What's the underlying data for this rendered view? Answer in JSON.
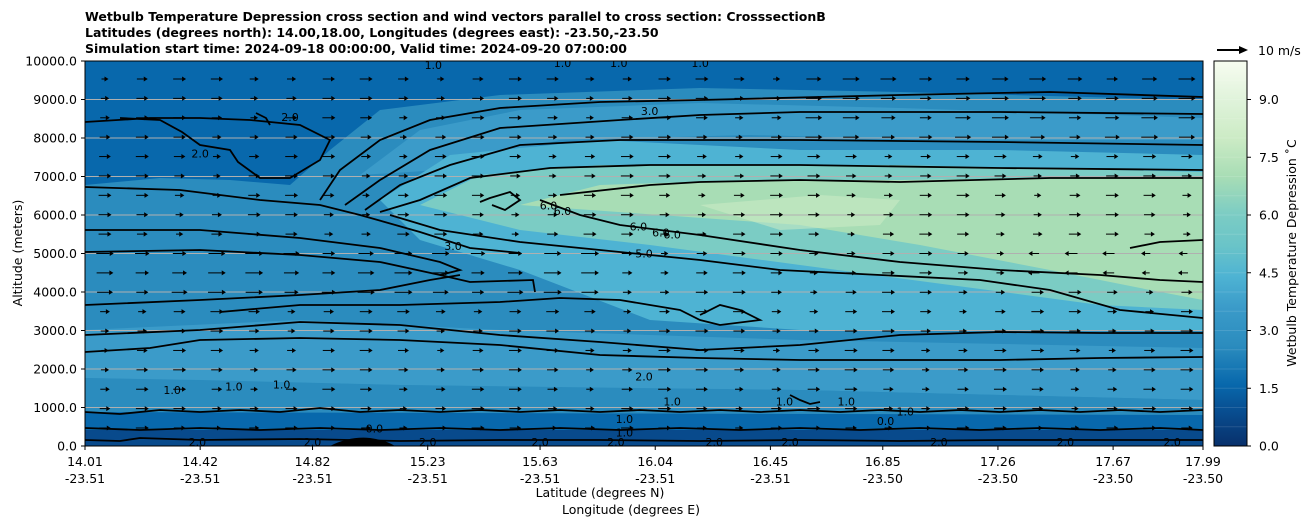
{
  "chart_data": {
    "type": "heatmap",
    "title_lines": [
      "Wetbulb Temperature Depression cross section and wind vectors parallel to cross section: CrosssectionB",
      "Latitudes (degrees north): 14.00,18.00, Longitudes (degrees east): -23.50,-23.50",
      "Simulation start time: 2024-09-18 00:00:00, Valid time: 2024-09-20 07:00:00"
    ],
    "xlabel_lines": [
      "Latitude (degrees N)",
      "Longitude (degrees E)"
    ],
    "ylabel": "Altitude (meters)",
    "colorbar_label": "Wetbulb Temperature Depression ˚C",
    "quiver_key_label": "10 m/s",
    "x_ticks": [
      {
        "lat": "14.01",
        "lon": "-23.51"
      },
      {
        "lat": "14.42",
        "lon": "-23.51"
      },
      {
        "lat": "14.82",
        "lon": "-23.51"
      },
      {
        "lat": "15.23",
        "lon": "-23.51"
      },
      {
        "lat": "15.63",
        "lon": "-23.51"
      },
      {
        "lat": "16.04",
        "lon": "-23.51"
      },
      {
        "lat": "16.45",
        "lon": "-23.51"
      },
      {
        "lat": "16.85",
        "lon": "-23.50"
      },
      {
        "lat": "17.26",
        "lon": "-23.50"
      },
      {
        "lat": "17.67",
        "lon": "-23.50"
      },
      {
        "lat": "17.99",
        "lon": "-23.50"
      }
    ],
    "y_ticks": [
      "0.0",
      "1000.0",
      "2000.0",
      "3000.0",
      "4000.0",
      "5000.0",
      "6000.0",
      "7000.0",
      "8000.0",
      "9000.0",
      "10000.0"
    ],
    "ylim": [
      0,
      10000
    ],
    "xlim": [
      14.01,
      17.99
    ],
    "colorbar_ticks": [
      "0.0",
      "1.5",
      "3.0",
      "4.5",
      "6.0",
      "7.5",
      "9.0"
    ],
    "colorbar_range": [
      0,
      10
    ],
    "contour_labels": [
      {
        "text": "1.0",
        "lat": 15.25,
        "alt": 9900
      },
      {
        "text": "1.0",
        "lat": 15.71,
        "alt": 9950
      },
      {
        "text": "1.0",
        "lat": 15.91,
        "alt": 9950
      },
      {
        "text": "1.0",
        "lat": 16.2,
        "alt": 9950
      },
      {
        "text": "2.0",
        "lat": 14.74,
        "alt": 8550
      },
      {
        "text": "2.0",
        "lat": 14.42,
        "alt": 7600
      },
      {
        "text": "3.0",
        "lat": 16.02,
        "alt": 8700
      },
      {
        "text": "6.0",
        "lat": 15.66,
        "alt": 6250
      },
      {
        "text": "6.0",
        "lat": 15.71,
        "alt": 6100
      },
      {
        "text": "6.0",
        "lat": 15.98,
        "alt": 5700
      },
      {
        "text": "6.0",
        "lat": 16.06,
        "alt": 5550
      },
      {
        "text": "6.0",
        "lat": 16.1,
        "alt": 5500
      },
      {
        "text": "3.0",
        "lat": 15.32,
        "alt": 5200
      },
      {
        "text": "5.0",
        "lat": 16.0,
        "alt": 5000
      },
      {
        "text": "2.0",
        "lat": 16.0,
        "alt": 1800
      },
      {
        "text": "1.0",
        "lat": 14.32,
        "alt": 1450
      },
      {
        "text": "1.0",
        "lat": 14.54,
        "alt": 1550
      },
      {
        "text": "1.0",
        "lat": 14.71,
        "alt": 1600
      },
      {
        "text": "1.0",
        "lat": 16.1,
        "alt": 1150
      },
      {
        "text": "1.0",
        "lat": 16.5,
        "alt": 1150
      },
      {
        "text": "1.0",
        "lat": 16.72,
        "alt": 1150
      },
      {
        "text": "0.0",
        "lat": 16.86,
        "alt": 650
      },
      {
        "text": "1.0",
        "lat": 16.93,
        "alt": 900
      },
      {
        "text": "1.0",
        "lat": 15.93,
        "alt": 700
      },
      {
        "text": "1.0",
        "lat": 15.93,
        "alt": 350
      },
      {
        "text": "0.0",
        "lat": 15.04,
        "alt": 450
      },
      {
        "text": "2.0",
        "lat": 14.41,
        "alt": 100
      },
      {
        "text": "2.0",
        "lat": 14.82,
        "alt": 100
      },
      {
        "text": "2.0",
        "lat": 15.23,
        "alt": 100
      },
      {
        "text": "2.0",
        "lat": 15.63,
        "alt": 100
      },
      {
        "text": "2.0",
        "lat": 15.9,
        "alt": 100
      },
      {
        "text": "2.0",
        "lat": 16.25,
        "alt": 100
      },
      {
        "text": "2.0",
        "lat": 16.52,
        "alt": 100
      },
      {
        "text": "2.0",
        "lat": 17.05,
        "alt": 100
      },
      {
        "text": "2.0",
        "lat": 17.5,
        "alt": 100
      },
      {
        "text": "2.0",
        "lat": 17.88,
        "alt": 100
      }
    ],
    "grid": "horizontal",
    "colormap": "GnBu_r"
  }
}
